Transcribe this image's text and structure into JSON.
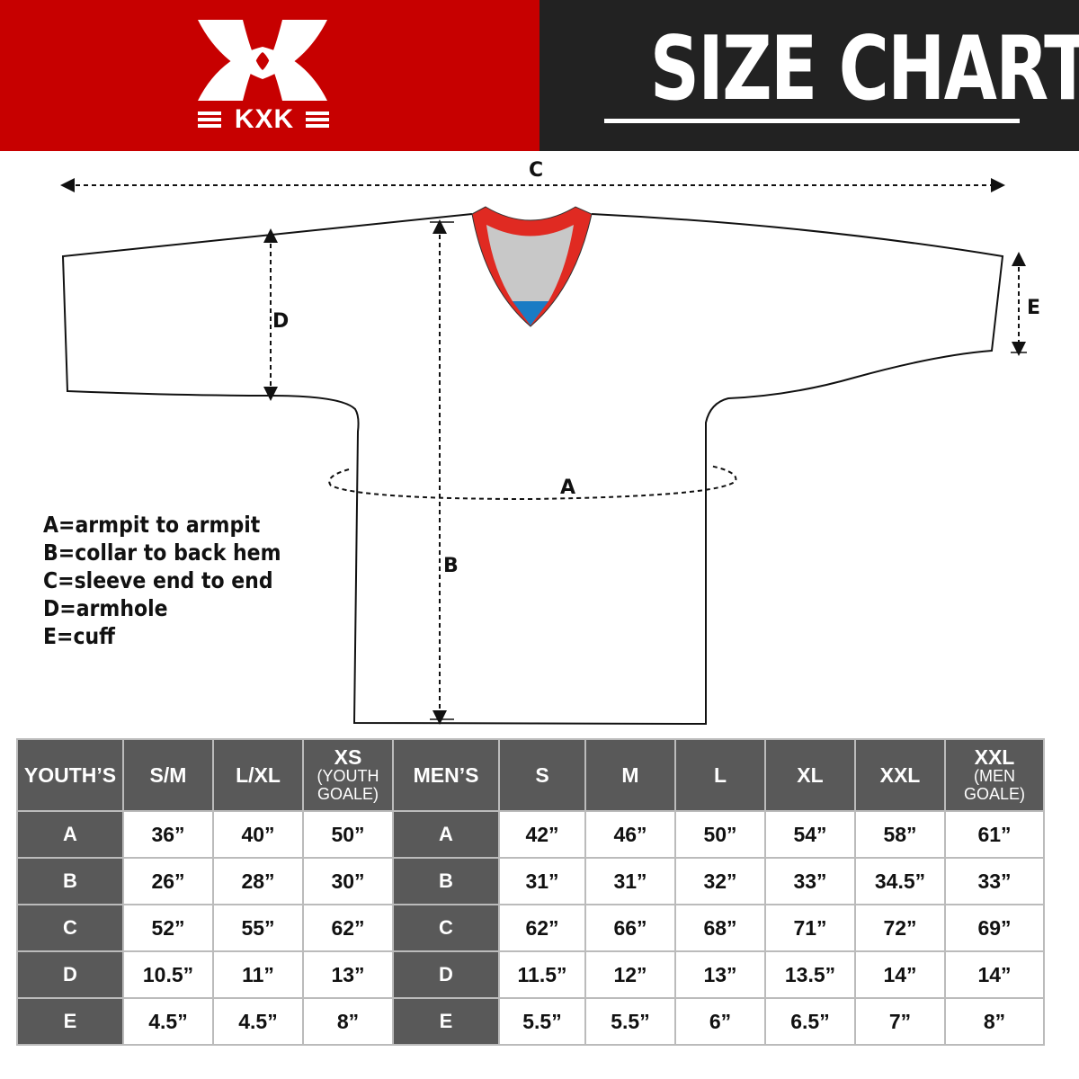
{
  "brand": {
    "name": "KXK",
    "color": "#c70000"
  },
  "header": {
    "title": "SIZE CHART"
  },
  "diagram": {
    "labels": {
      "a": "A",
      "b": "B",
      "c": "C",
      "d": "D",
      "e": "E"
    },
    "legend": [
      "A=armpit to armpit",
      "B=collar to back hem",
      "C=sleeve end to end",
      "D=armhole",
      "E=cuff"
    ],
    "collar_colors": {
      "trim": "#e02a22",
      "inner": "#c8c8c8",
      "accent": "#1a7bc4"
    }
  },
  "table": {
    "youth": {
      "header": "YOUTH’S",
      "sizes": [
        {
          "main": "S/M"
        },
        {
          "main": "L/XL"
        },
        {
          "main": "XS",
          "sub": [
            "(YOUTH",
            "GOALE)"
          ]
        }
      ],
      "rows": [
        {
          "label": "A",
          "values": [
            "36”",
            "40”",
            "50”"
          ]
        },
        {
          "label": "B",
          "values": [
            "26”",
            "28”",
            "30”"
          ]
        },
        {
          "label": "C",
          "values": [
            "52”",
            "55”",
            "62”"
          ]
        },
        {
          "label": "D",
          "values": [
            "10.5”",
            "11”",
            "13”"
          ]
        },
        {
          "label": "E",
          "values": [
            "4.5”",
            "4.5”",
            "8”"
          ]
        }
      ]
    },
    "men": {
      "header": "MEN’S",
      "sizes": [
        {
          "main": "S"
        },
        {
          "main": "M"
        },
        {
          "main": "L"
        },
        {
          "main": "XL"
        },
        {
          "main": "XXL"
        },
        {
          "main": "XXL",
          "sub": [
            "(MEN",
            "GOALE)"
          ]
        }
      ],
      "rows": [
        {
          "label": "A",
          "values": [
            "42”",
            "46”",
            "50”",
            "54”",
            "58”",
            "61”"
          ]
        },
        {
          "label": "B",
          "values": [
            "31”",
            "31”",
            "32”",
            "33”",
            "34.5”",
            "33”"
          ]
        },
        {
          "label": "C",
          "values": [
            "62”",
            "66”",
            "68”",
            "71”",
            "72”",
            "69”"
          ]
        },
        {
          "label": "D",
          "values": [
            "11.5”",
            "12”",
            "13”",
            "13.5”",
            "14”",
            "14”"
          ]
        },
        {
          "label": "E",
          "values": [
            "5.5”",
            "5.5”",
            "6”",
            "6.5”",
            "7”",
            "8”"
          ]
        }
      ]
    }
  }
}
